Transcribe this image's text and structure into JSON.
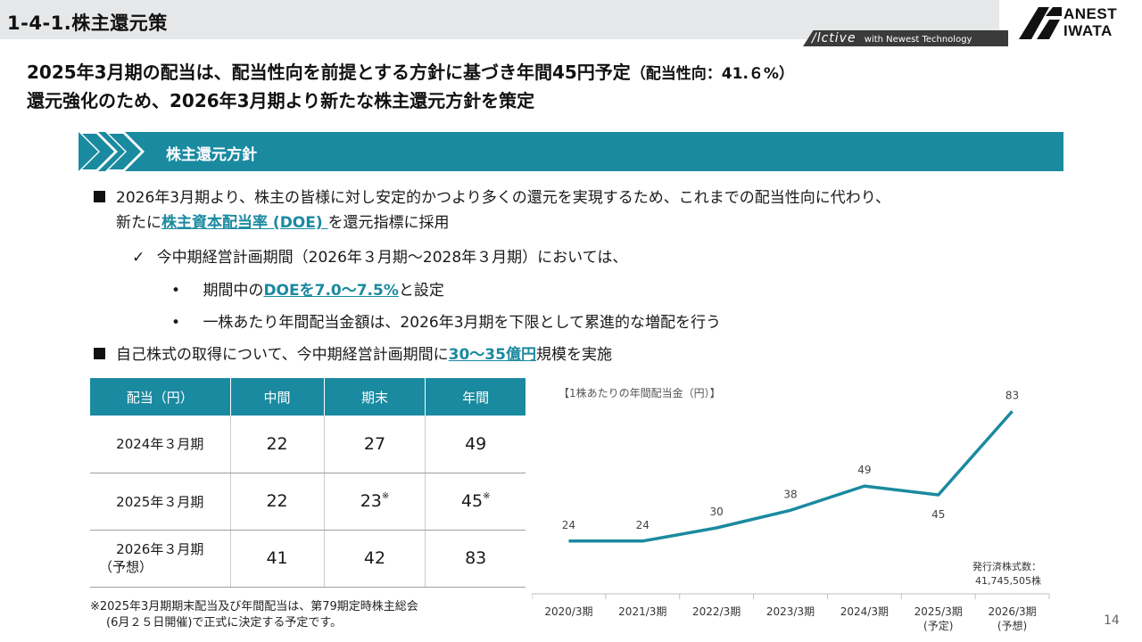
{
  "header": {
    "section_title": "1-4-1.株主還元策",
    "tagline_brand": "/lctive",
    "tagline_text": "with Newest Technology",
    "logo_line1": "ANEST",
    "logo_line2": "IWATA"
  },
  "headline": {
    "line1_main": "2025年3月期の配当は、配当性向を前提とする方針に基づき年間45円予定",
    "line1_note": "（配当性向：41.６%）",
    "line2": "還元強化のため、2026年3月期より新たな株主還元方針を策定"
  },
  "banner": {
    "title": "株主還元方針"
  },
  "policy": {
    "b1_line1": "2026年3月期より、株主の皆様に対し安定的かつより多くの還元を実現するため、これまでの配当性向に代わり、",
    "b1_line2_pre": "新たに",
    "b1_line2_hl": "株主資本配当率 (DOE) ",
    "b1_line2_post": "を還元指標に採用",
    "check_mark": "✓",
    "sub1": "今中期経営計画期間（2026年３月期～2028年３月期）においては、",
    "dot": "•",
    "sub2_pre": "期間中の",
    "sub2_hl": "DOEを7.0～7.5%",
    "sub2_post": "と設定",
    "sub3": "一株あたり年間配当金額は、2026年3月期を下限として累進的な増配を行う",
    "b2_pre": "自己株式の取得について、今中期経営計画期間に",
    "b2_hl": "30～35億円",
    "b2_post": "規模を実施"
  },
  "dividend_table": {
    "headers": [
      "配当（円）",
      "中間",
      "期末",
      "年間"
    ],
    "rows": [
      {
        "label": "2024年３月期",
        "label2": "",
        "interim": "22",
        "final": "27",
        "final_mark": "",
        "annual": "49",
        "annual_mark": ""
      },
      {
        "label": "2025年３月期",
        "label2": "",
        "interim": "22",
        "final": "23",
        "final_mark": "※",
        "annual": "45",
        "annual_mark": "※"
      },
      {
        "label": "2026年３月期",
        "label2": "（予想）",
        "interim": "41",
        "final": "42",
        "final_mark": "",
        "annual": "83",
        "annual_mark": ""
      }
    ]
  },
  "footnote": {
    "line1": "※2025年3月期期末配当及び年間配当は、第79期定時株主総会",
    "line2": "(6月２５日開催)で正式に決定する予定です。"
  },
  "chart_data": {
    "type": "line",
    "title": "【1株あたりの年間配当金（円）】",
    "categories": [
      "2020/3期",
      "2021/3期",
      "2022/3期",
      "2023/3期",
      "2024/3期",
      "2025/3期",
      "2026/3期"
    ],
    "category_notes": [
      "",
      "",
      "",
      "",
      "",
      "(予定)",
      "(予想)"
    ],
    "values": [
      24,
      24,
      30,
      38,
      49,
      45,
      83
    ],
    "color": "#1a8aa0",
    "ylim": [
      0,
      90
    ],
    "grid": false
  },
  "shares": {
    "label": "発行済株式数：",
    "value": "41,745,505株"
  },
  "page_number": "14"
}
